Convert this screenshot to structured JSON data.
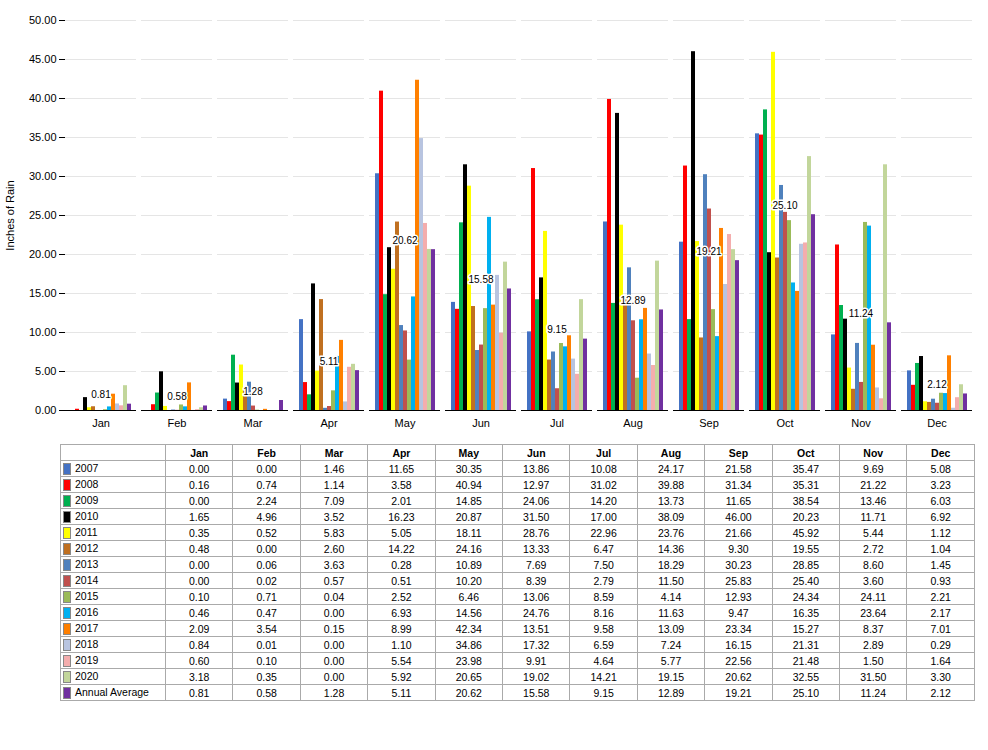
{
  "chart_data": {
    "type": "bar",
    "ylabel": "Inches of Rain",
    "categories": [
      "Jan",
      "Feb",
      "Mar",
      "Apr",
      "May",
      "Jun",
      "Jul",
      "Aug",
      "Sep",
      "Oct",
      "Nov",
      "Dec"
    ],
    "ylim": [
      0,
      50
    ],
    "yticks": [
      {
        "value": 0,
        "label": "0.00"
      },
      {
        "value": 5,
        "label": "5.00"
      },
      {
        "value": 10,
        "label": "10.00"
      },
      {
        "value": 15,
        "label": "15.00"
      },
      {
        "value": 20,
        "label": "20.00"
      },
      {
        "value": 25,
        "label": "25.00"
      },
      {
        "value": 30,
        "label": "30.00"
      },
      {
        "value": 35,
        "label": "35.00"
      },
      {
        "value": 40,
        "label": "40.00"
      },
      {
        "value": 45,
        "label": "45.00"
      },
      {
        "value": 50,
        "label": "50.00"
      }
    ],
    "grid": true,
    "legend": "bottom",
    "series": [
      {
        "name": "2007",
        "color": "#4472C4",
        "values": [
          0.0,
          0.0,
          1.46,
          11.65,
          30.35,
          13.86,
          10.08,
          24.17,
          21.58,
          35.47,
          9.69,
          5.08
        ],
        "value_labels": [
          "0.00",
          "0.00",
          "1.46",
          "11.65",
          "30.35",
          "13.86",
          "10.08",
          "24.17",
          "21.58",
          "35.47",
          "9.69",
          "5.08"
        ]
      },
      {
        "name": "2008",
        "color": "#FF0000",
        "values": [
          0.16,
          0.74,
          1.14,
          3.58,
          40.94,
          12.97,
          31.02,
          39.88,
          31.34,
          35.31,
          21.22,
          3.23
        ],
        "value_labels": [
          "0.16",
          "0.74",
          "1.14",
          "3.58",
          "40.94",
          "12.97",
          "31.02",
          "39.88",
          "31.34",
          "35.31",
          "21.22",
          "3.23"
        ]
      },
      {
        "name": "2009",
        "color": "#00B050",
        "values": [
          0.0,
          2.24,
          7.09,
          2.01,
          14.85,
          24.06,
          14.2,
          13.73,
          11.65,
          38.54,
          13.46,
          6.03
        ],
        "value_labels": [
          "0.00",
          "2.24",
          "7.09",
          "2.01",
          "14.85",
          "24.06",
          "14.20",
          "13.73",
          "11.65",
          "38.54",
          "13.46",
          "6.03"
        ]
      },
      {
        "name": "2010",
        "color": "#000000",
        "values": [
          1.65,
          4.96,
          3.52,
          16.23,
          20.87,
          31.5,
          17.0,
          38.09,
          46.0,
          20.23,
          11.71,
          6.92
        ],
        "value_labels": [
          "1.65",
          "4.96",
          "3.52",
          "16.23",
          "20.87",
          "31.50",
          "17.00",
          "38.09",
          "46.00",
          "20.23",
          "11.71",
          "6.92"
        ]
      },
      {
        "name": "2011",
        "color": "#FFFF00",
        "values": [
          0.35,
          0.52,
          5.83,
          5.05,
          18.11,
          28.76,
          22.96,
          23.76,
          21.66,
          45.92,
          5.44,
          1.12
        ],
        "value_labels": [
          "0.35",
          "0.52",
          "5.83",
          "5.05",
          "18.11",
          "28.76",
          "22.96",
          "23.76",
          "21.66",
          "45.92",
          "5.44",
          "1.12"
        ]
      },
      {
        "name": "2012",
        "color": "#C07020",
        "values": [
          0.48,
          0.0,
          2.6,
          14.22,
          24.16,
          13.33,
          6.47,
          14.36,
          9.3,
          19.55,
          2.72,
          1.04
        ],
        "value_labels": [
          "0.48",
          "0.00",
          "2.60",
          "14.22",
          "24.16",
          "13.33",
          "6.47",
          "14.36",
          "9.30",
          "19.55",
          "2.72",
          "1.04"
        ]
      },
      {
        "name": "2013",
        "color": "#4F81BD",
        "values": [
          0.0,
          0.06,
          3.63,
          0.28,
          10.89,
          7.69,
          7.5,
          18.29,
          30.23,
          28.85,
          8.6,
          1.45
        ],
        "value_labels": [
          "0.00",
          "0.06",
          "3.63",
          "0.28",
          "10.89",
          "7.69",
          "7.50",
          "18.29",
          "30.23",
          "28.85",
          "8.60",
          "1.45"
        ]
      },
      {
        "name": "2014",
        "color": "#C0504D",
        "values": [
          0.0,
          0.02,
          0.57,
          0.51,
          10.2,
          8.39,
          2.79,
          11.5,
          25.83,
          25.4,
          3.6,
          0.93
        ],
        "value_labels": [
          "0.00",
          "0.02",
          "0.57",
          "0.51",
          "10.20",
          "8.39",
          "2.79",
          "11.50",
          "25.83",
          "25.40",
          "3.60",
          "0.93"
        ]
      },
      {
        "name": "2015",
        "color": "#9BBB59",
        "values": [
          0.1,
          0.71,
          0.04,
          2.52,
          6.46,
          13.06,
          8.59,
          4.14,
          12.93,
          24.34,
          24.11,
          2.21
        ],
        "value_labels": [
          "0.10",
          "0.71",
          "0.04",
          "2.52",
          "6.46",
          "13.06",
          "8.59",
          "4.14",
          "12.93",
          "24.34",
          "24.11",
          "2.21"
        ]
      },
      {
        "name": "2016",
        "color": "#00B0F0",
        "values": [
          0.46,
          0.47,
          0.0,
          6.93,
          14.56,
          24.76,
          8.16,
          11.63,
          9.47,
          16.35,
          23.64,
          2.17
        ],
        "value_labels": [
          "0.46",
          "0.47",
          "0.00",
          "6.93",
          "14.56",
          "24.76",
          "8.16",
          "11.63",
          "9.47",
          "16.35",
          "23.64",
          "2.17"
        ]
      },
      {
        "name": "2017",
        "color": "#FF8000",
        "values": [
          2.09,
          3.54,
          0.15,
          8.99,
          42.34,
          13.51,
          9.58,
          13.09,
          23.34,
          15.27,
          8.37,
          7.01
        ],
        "value_labels": [
          "2.09",
          "3.54",
          "0.15",
          "8.99",
          "42.34",
          "13.51",
          "9.58",
          "13.09",
          "23.34",
          "15.27",
          "8.37",
          "7.01"
        ]
      },
      {
        "name": "2018",
        "color": "#B8C4E0",
        "values": [
          0.84,
          0.01,
          0.0,
          1.1,
          34.86,
          17.32,
          6.59,
          7.24,
          16.15,
          21.31,
          2.89,
          0.29
        ],
        "value_labels": [
          "0.84",
          "0.01",
          "0.00",
          "1.10",
          "34.86",
          "17.32",
          "6.59",
          "7.24",
          "16.15",
          "21.31",
          "2.89",
          "0.29"
        ]
      },
      {
        "name": "2019",
        "color": "#F4ADAD",
        "values": [
          0.6,
          0.1,
          0.0,
          5.54,
          23.98,
          9.91,
          4.64,
          5.77,
          22.56,
          21.48,
          1.5,
          1.64
        ],
        "value_labels": [
          "0.60",
          "0.10",
          "0.00",
          "5.54",
          "23.98",
          "9.91",
          "4.64",
          "5.77",
          "22.56",
          "21.48",
          "1.50",
          "1.64"
        ]
      },
      {
        "name": "2020",
        "color": "#C2D69B",
        "values": [
          3.18,
          0.35,
          0.0,
          5.92,
          20.65,
          19.02,
          14.21,
          19.15,
          20.62,
          32.55,
          31.5,
          3.3
        ],
        "value_labels": [
          "3.18",
          "0.35",
          "0.00",
          "5.92",
          "20.65",
          "19.02",
          "14.21",
          "19.15",
          "20.62",
          "32.55",
          "31.50",
          "3.30"
        ]
      },
      {
        "name": "Annual Average",
        "color": "#7030A0",
        "values": [
          0.81,
          0.58,
          1.28,
          5.11,
          20.62,
          15.58,
          9.15,
          12.89,
          19.21,
          25.1,
          11.24,
          2.12
        ],
        "value_labels": [
          "0.81",
          "0.58",
          "1.28",
          "5.11",
          "20.62",
          "15.58",
          "9.15",
          "12.89",
          "19.21",
          "25.10",
          "11.24",
          "2.12"
        ]
      }
    ],
    "annotations": [
      {
        "x": "Jan",
        "y": 0.81,
        "text": "0.81"
      },
      {
        "x": "Feb",
        "y": 0.58,
        "text": "0.58"
      },
      {
        "x": "Mar",
        "y": 1.28,
        "text": "1.28"
      },
      {
        "x": "Apr",
        "y": 5.11,
        "text": "5.11"
      },
      {
        "x": "May",
        "y": 20.62,
        "text": "20.62"
      },
      {
        "x": "Jun",
        "y": 15.58,
        "text": "15.58"
      },
      {
        "x": "Jul",
        "y": 9.15,
        "text": "9.15"
      },
      {
        "x": "Aug",
        "y": 12.89,
        "text": "12.89"
      },
      {
        "x": "Sep",
        "y": 19.21,
        "text": "19.21"
      },
      {
        "x": "Oct",
        "y": 25.1,
        "text": "25.10"
      },
      {
        "x": "Nov",
        "y": 11.24,
        "text": "11.24"
      },
      {
        "x": "Dec",
        "y": 2.12,
        "text": "2.12"
      }
    ]
  }
}
